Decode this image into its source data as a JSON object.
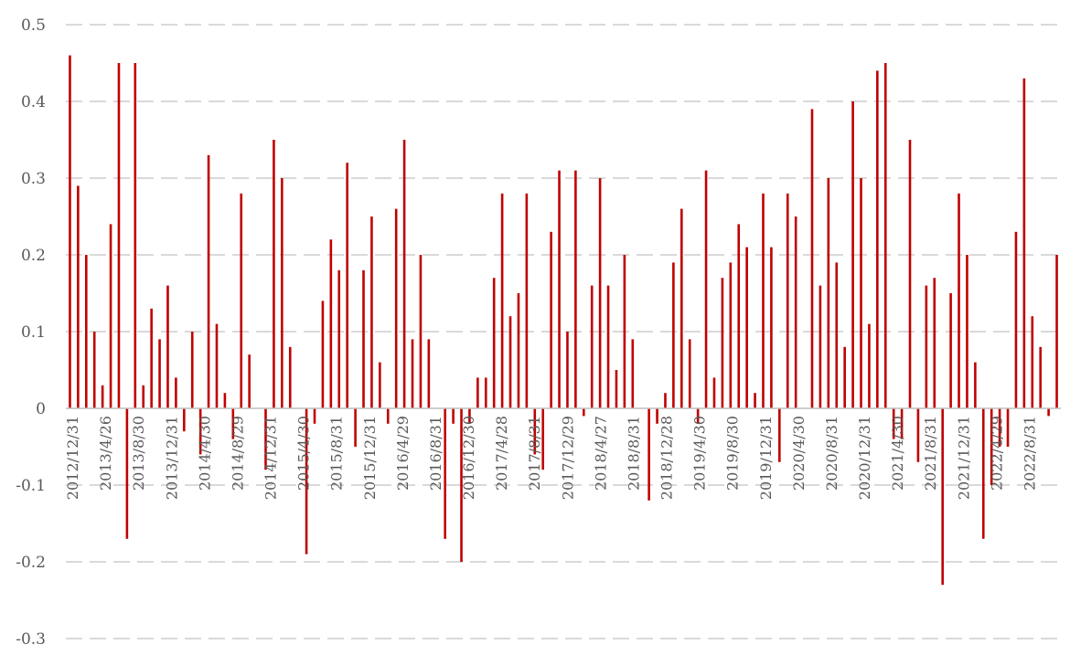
{
  "chart_data": {
    "type": "bar",
    "title": "",
    "xlabel": "",
    "ylabel": "",
    "ylim": [
      -0.3,
      0.5
    ],
    "yticks": [
      0.5,
      0.4,
      0.3,
      0.2,
      0.1,
      0,
      -0.1,
      -0.2,
      -0.3
    ],
    "ytick_labels": [
      "0.5",
      "0.4",
      "0.3",
      "0.2",
      "0.1",
      "0",
      "-0.1",
      "-0.2",
      "-0.3"
    ],
    "grid": true,
    "legend": "none",
    "bar_color": "#c00000",
    "x_tick_labels": [
      "2012/12/31",
      "2013/4/26",
      "2013/8/30",
      "2013/12/31",
      "2014/4/30",
      "2014/8/29",
      "2014/12/31",
      "2015/4/30",
      "2015/8/31",
      "2015/12/31",
      "2016/4/29",
      "2016/8/31",
      "2016/12/30",
      "2017/4/28",
      "2017/8/31",
      "2017/12/29",
      "2018/4/27",
      "2018/8/31",
      "2018/12/28",
      "2019/4/30",
      "2019/8/30",
      "2019/12/31",
      "2020/4/30",
      "2020/8/31",
      "2020/12/31",
      "2021/4/30",
      "2021/8/31",
      "2021/12/31",
      "2022/4/29",
      "2022/8/31"
    ],
    "values": [
      0.46,
      0.29,
      0.2,
      0.1,
      0.03,
      0.24,
      0.45,
      -0.17,
      0.45,
      0.03,
      0.13,
      0.09,
      0.16,
      0.04,
      -0.03,
      0.1,
      -0.06,
      0.33,
      0.11,
      0.02,
      -0.04,
      0.28,
      0.07,
      0.0,
      -0.08,
      0.35,
      0.3,
      0.08,
      0.0,
      -0.19,
      -0.02,
      0.14,
      0.22,
      0.18,
      0.32,
      -0.05,
      0.18,
      0.25,
      0.06,
      -0.02,
      0.26,
      0.35,
      0.09,
      0.2,
      0.09,
      0.0,
      -0.17,
      -0.02,
      -0.2,
      -0.02,
      0.04,
      0.04,
      0.17,
      0.28,
      0.12,
      0.15,
      0.28,
      -0.06,
      -0.08,
      0.23,
      0.31,
      0.1,
      0.31,
      -0.01,
      0.16,
      0.3,
      0.16,
      0.05,
      0.2,
      0.09,
      0.0,
      -0.12,
      -0.02,
      0.02,
      0.19,
      0.26,
      0.09,
      -0.02,
      0.31,
      0.04,
      0.17,
      0.19,
      0.24,
      0.21,
      0.02,
      0.28,
      0.21,
      -0.07,
      0.28,
      0.25,
      0.0,
      0.39,
      0.16,
      0.3,
      0.19,
      0.08,
      0.4,
      0.3,
      0.11,
      0.44,
      0.45,
      -0.04,
      -0.04,
      0.35,
      -0.07,
      0.16,
      0.17,
      -0.23,
      0.15,
      0.28,
      0.2,
      0.06,
      -0.17,
      -0.1,
      -0.05,
      -0.05,
      0.23,
      0.43,
      0.12,
      0.08,
      -0.01,
      0.2
    ]
  }
}
